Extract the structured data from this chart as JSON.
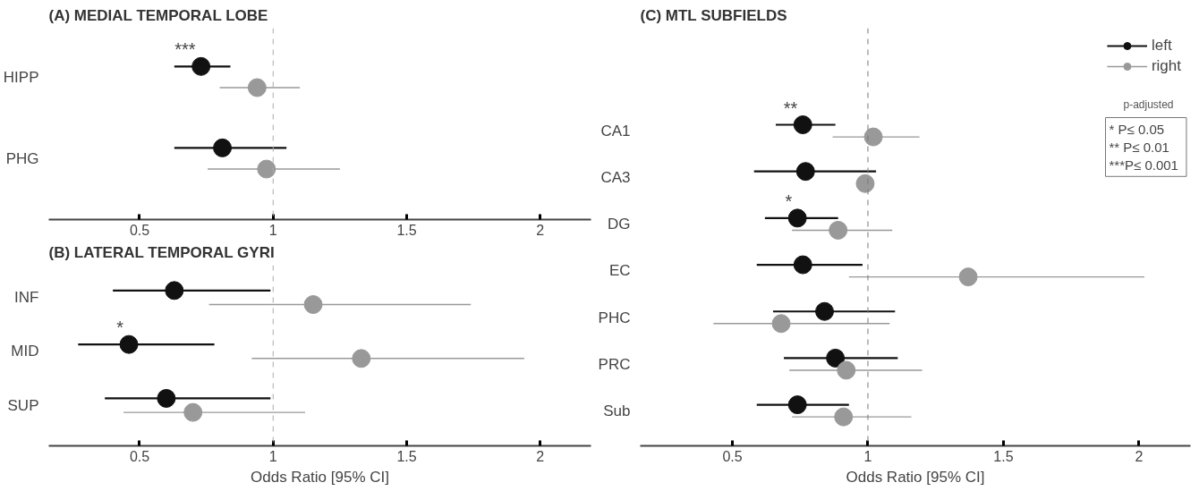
{
  "chart_data": [
    {
      "type": "scatter",
      "orientation": "horizontal",
      "title": "(A) MEDIAL TEMPORAL LOBE",
      "categories": [
        "HIPP",
        "PHG"
      ],
      "marker": "circle",
      "xlim": [
        0.16,
        2.19
      ],
      "xticks": [
        0.5,
        1,
        1.5,
        2
      ],
      "series": [
        {
          "color": "#111111",
          "values": [
            0.73,
            0.81
          ],
          "errors": [
            [
              0.63,
              0.84
            ],
            [
              0.63,
              1.05
            ]
          ]
        },
        {
          "color": "#999999",
          "values": [
            0.94,
            0.975
          ],
          "errors": [
            [
              0.8,
              1.1
            ],
            [
              0.755,
              1.25
            ]
          ]
        }
      ],
      "ref_lines": [
        {
          "axis": "x",
          "value": 1,
          "color": "#aaaaaa",
          "line_style": "dashed"
        }
      ],
      "annotations": [
        {
          "text": "***",
          "x": 0.73,
          "y": "HIPP"
        }
      ]
    },
    {
      "type": "scatter",
      "orientation": "horizontal",
      "title": "(B)  LATERAL TEMPORAL GYRI",
      "categories": [
        "INF",
        "MID",
        "SUP"
      ],
      "marker": "circle",
      "xlim": [
        0.16,
        2.19
      ],
      "xticks": [
        0.5,
        1,
        1.5,
        2
      ],
      "xlabel": "Odds Ratio [95% CI]",
      "series": [
        {
          "color": "#111111",
          "values": [
            0.63,
            0.46,
            0.6
          ],
          "errors": [
            [
              0.4,
              0.99
            ],
            [
              0.27,
              0.78
            ],
            [
              0.37,
              0.99
            ]
          ]
        },
        {
          "color": "#999999",
          "values": [
            1.15,
            1.33,
            0.7
          ],
          "errors": [
            [
              0.76,
              1.74
            ],
            [
              0.92,
              1.94
            ],
            [
              0.44,
              1.12
            ]
          ]
        }
      ],
      "ref_lines": [
        {
          "axis": "x",
          "value": 1,
          "color": "#aaaaaa",
          "line_style": "dashed"
        }
      ],
      "annotations": [
        {
          "text": "*",
          "x": 0.46,
          "y": "MID"
        }
      ]
    },
    {
      "type": "scatter",
      "orientation": "horizontal",
      "title": "(C)   MTL SUBFIELDS",
      "categories": [
        "CA1",
        "CA3",
        "DG",
        "EC",
        "PHC",
        "PRC",
        "Sub"
      ],
      "marker": "circle",
      "xlim": [
        0.16,
        2.19
      ],
      "xticks": [
        0.5,
        1,
        1.5,
        2
      ],
      "xlabel": "Odds Ratio [95% CI]",
      "legend": "top right",
      "series": [
        {
          "name": "left",
          "color": "#111111",
          "values": [
            0.76,
            0.77,
            0.74,
            0.76,
            0.84,
            0.88,
            0.74
          ],
          "errors": [
            [
              0.66,
              0.88
            ],
            [
              0.58,
              1.03
            ],
            [
              0.62,
              0.89
            ],
            [
              0.59,
              0.98
            ],
            [
              0.65,
              1.1
            ],
            [
              0.69,
              1.11
            ],
            [
              0.59,
              0.93
            ]
          ]
        },
        {
          "name": "right",
          "color": "#999999",
          "values": [
            1.02,
            0.99,
            0.89,
            1.37,
            0.68,
            0.92,
            0.91
          ],
          "errors": [
            [
              0.87,
              1.19
            ],
            null,
            [
              0.72,
              1.09
            ],
            [
              0.93,
              2.02
            ],
            [
              0.43,
              1.08
            ],
            [
              0.71,
              1.2
            ],
            [
              0.72,
              1.16
            ]
          ]
        }
      ],
      "ref_lines": [
        {
          "axis": "x",
          "value": 1,
          "color": "#777777",
          "line_style": "dashed"
        }
      ],
      "annotations": [
        {
          "text": "**",
          "x": 0.76,
          "y": "CA1"
        },
        {
          "text": "*",
          "x": 0.74,
          "y": "DG"
        },
        "p-adjusted",
        "*      P≤ 0.05",
        "**    P≤ 0.01",
        "***P≤ 0.001"
      ]
    }
  ]
}
